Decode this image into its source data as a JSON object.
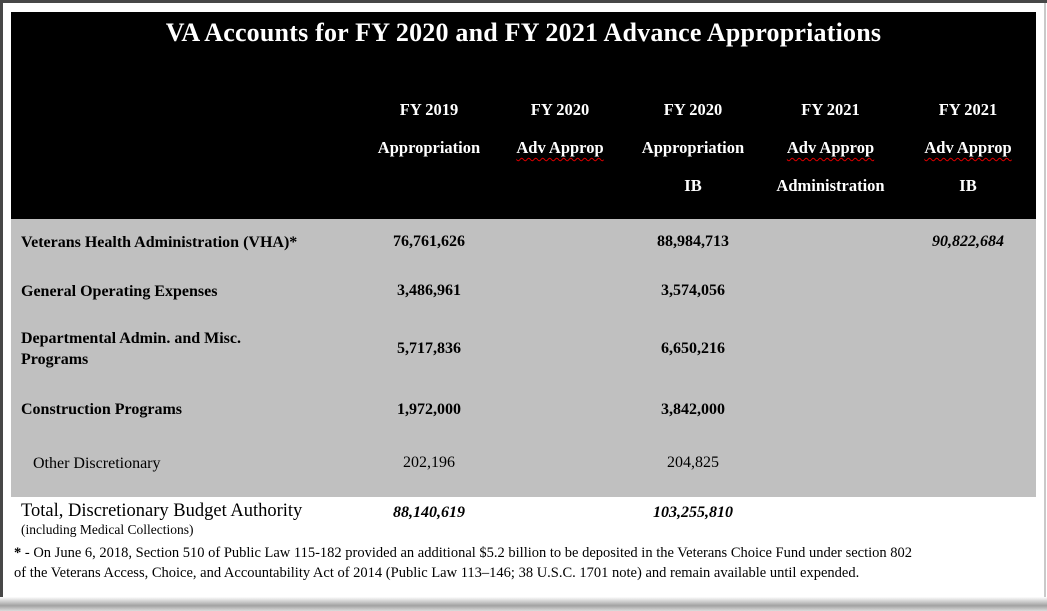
{
  "title": "VA Accounts for FY 2020 and FY 2021 Advance Appropriations",
  "columns": [
    {
      "line1": "FY 2019",
      "line2": "Appropriation",
      "line3": ""
    },
    {
      "line1": "FY 2020",
      "line2": "Adv Approp",
      "line3": ""
    },
    {
      "line1": "FY 2020",
      "line2": "Appropriation",
      "line3": "IB"
    },
    {
      "line1": "FY 2021",
      "line2": "Adv Approp",
      "line3": "Administration"
    },
    {
      "line1": "FY 2021",
      "line2": "Adv Approp",
      "line3": "IB"
    }
  ],
  "rows": [
    {
      "label": "Veterans Health Administration (VHA)*",
      "values": [
        "76,761,626",
        "",
        "88,984,713",
        "",
        "90,822,684"
      ]
    },
    {
      "label": "General Operating Expenses",
      "values": [
        "3,486,961",
        "",
        "3,574,056",
        "",
        ""
      ]
    },
    {
      "label": "Departmental Admin. and Misc. Programs",
      "values": [
        "5,717,836",
        "",
        "6,650,216",
        "",
        ""
      ]
    },
    {
      "label": "Construction Programs",
      "values": [
        "1,972,000",
        "",
        "3,842,000",
        "",
        ""
      ]
    },
    {
      "label": "Other Discretionary",
      "values": [
        "202,196",
        "",
        "204,825",
        "",
        ""
      ]
    }
  ],
  "total": {
    "label": "Total, Discretionary Budget Authority",
    "sublabel": "(including Medical Collections)",
    "values": [
      "88,140,619",
      "",
      "103,255,810",
      "",
      ""
    ]
  },
  "footnote": {
    "star": "*",
    "line1": "- On June 6, 2018, Section 510 of Public Law 115-182 provided an additional $5.2 billion to be deposited in the Veterans Choice Fund under section 802",
    "line2": "of the Veterans Access, Choice, and Accountability Act of 2014 (Public Law 113–146; 38 U.S.C. 1701 note) and remain available until expended."
  },
  "colors": {
    "header_bg": "#000000",
    "header_text": "#ffffff",
    "body_bg": "#c0c0c0",
    "body_text": "#000000",
    "spellcheck_underline": "#e00000"
  }
}
